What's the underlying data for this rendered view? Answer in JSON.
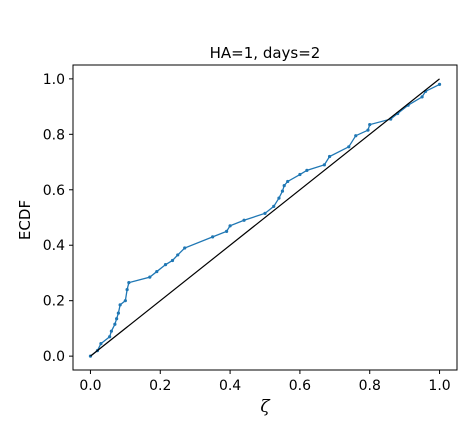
{
  "chart_data": {
    "type": "line",
    "title": "HA=1, days=2",
    "xlabel": "ζ",
    "ylabel": "ECDF",
    "xlim": [
      -0.05,
      1.05
    ],
    "ylim": [
      -0.05,
      1.05
    ],
    "xticks": [
      0.0,
      0.2,
      0.4,
      0.6,
      0.8,
      1.0
    ],
    "xtick_labels": [
      "0.0",
      "0.2",
      "0.4",
      "0.6",
      "0.8",
      "1.0"
    ],
    "yticks": [
      0.0,
      0.2,
      0.4,
      0.6,
      0.8,
      1.0
    ],
    "ytick_labels": [
      "0.0",
      "0.2",
      "0.4",
      "0.6",
      "0.8",
      "1.0"
    ],
    "grid": false,
    "legend": "none",
    "series": [
      {
        "color": "#1f77b4",
        "style": "line+markers",
        "x": [
          0.0,
          0.02,
          0.03,
          0.055,
          0.06,
          0.07,
          0.075,
          0.08,
          0.085,
          0.1,
          0.105,
          0.11,
          0.17,
          0.19,
          0.215,
          0.235,
          0.25,
          0.27,
          0.35,
          0.39,
          0.4,
          0.44,
          0.5,
          0.525,
          0.54,
          0.55,
          0.555,
          0.565,
          0.6,
          0.62,
          0.67,
          0.685,
          0.74,
          0.76,
          0.795,
          0.8,
          0.86,
          0.88,
          0.91,
          0.95,
          0.96,
          1.0
        ],
        "y": [
          0.0,
          0.02,
          0.045,
          0.07,
          0.09,
          0.115,
          0.135,
          0.155,
          0.185,
          0.2,
          0.24,
          0.265,
          0.285,
          0.305,
          0.33,
          0.345,
          0.365,
          0.39,
          0.43,
          0.45,
          0.47,
          0.49,
          0.515,
          0.54,
          0.57,
          0.595,
          0.615,
          0.63,
          0.655,
          0.67,
          0.69,
          0.72,
          0.755,
          0.795,
          0.815,
          0.835,
          0.855,
          0.875,
          0.905,
          0.935,
          0.955,
          0.98
        ]
      },
      {
        "color": "#000000",
        "style": "line",
        "x": [
          0.0,
          1.0
        ],
        "y": [
          0.0,
          1.0
        ]
      }
    ]
  }
}
